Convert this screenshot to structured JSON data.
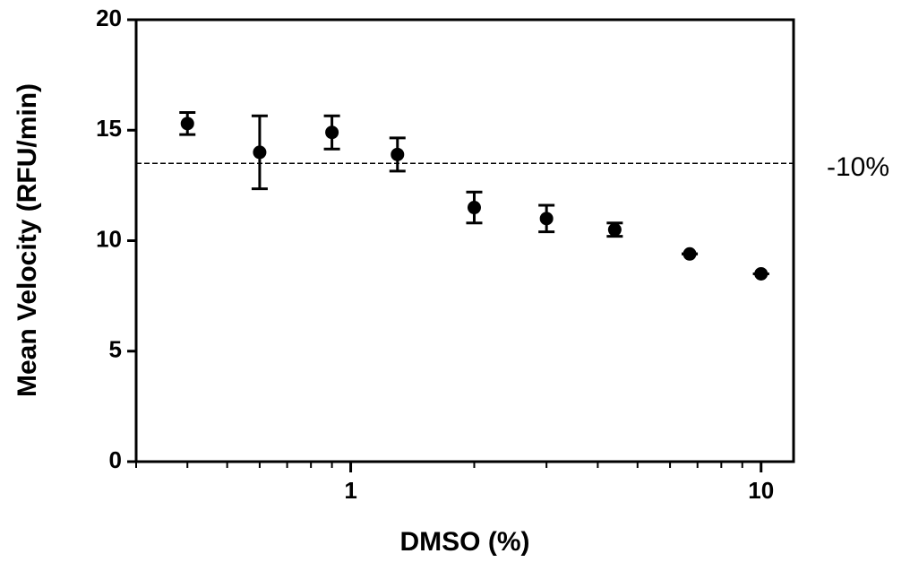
{
  "chart_data": {
    "type": "scatter",
    "x_label": "DMSO (%)",
    "y_label": "Mean Velocity (RFU/min)",
    "x": [
      0.4,
      0.6,
      0.9,
      1.3,
      2.0,
      3.0,
      4.4,
      6.7,
      10
    ],
    "values": [
      15.3,
      14.0,
      14.9,
      13.9,
      11.5,
      11.0,
      10.5,
      9.4,
      8.5
    ],
    "errors": [
      0.5,
      1.65,
      0.75,
      0.75,
      0.7,
      0.6,
      0.3,
      0,
      0
    ],
    "color": "#000000",
    "xlog": true,
    "xlim": [
      0.3,
      12
    ],
    "xticks": [
      1,
      10
    ],
    "ylim": [
      0,
      20
    ],
    "yticks": [
      0,
      5,
      10,
      15,
      20
    ],
    "hline": {
      "value": 13.5,
      "label": "-10%"
    }
  }
}
